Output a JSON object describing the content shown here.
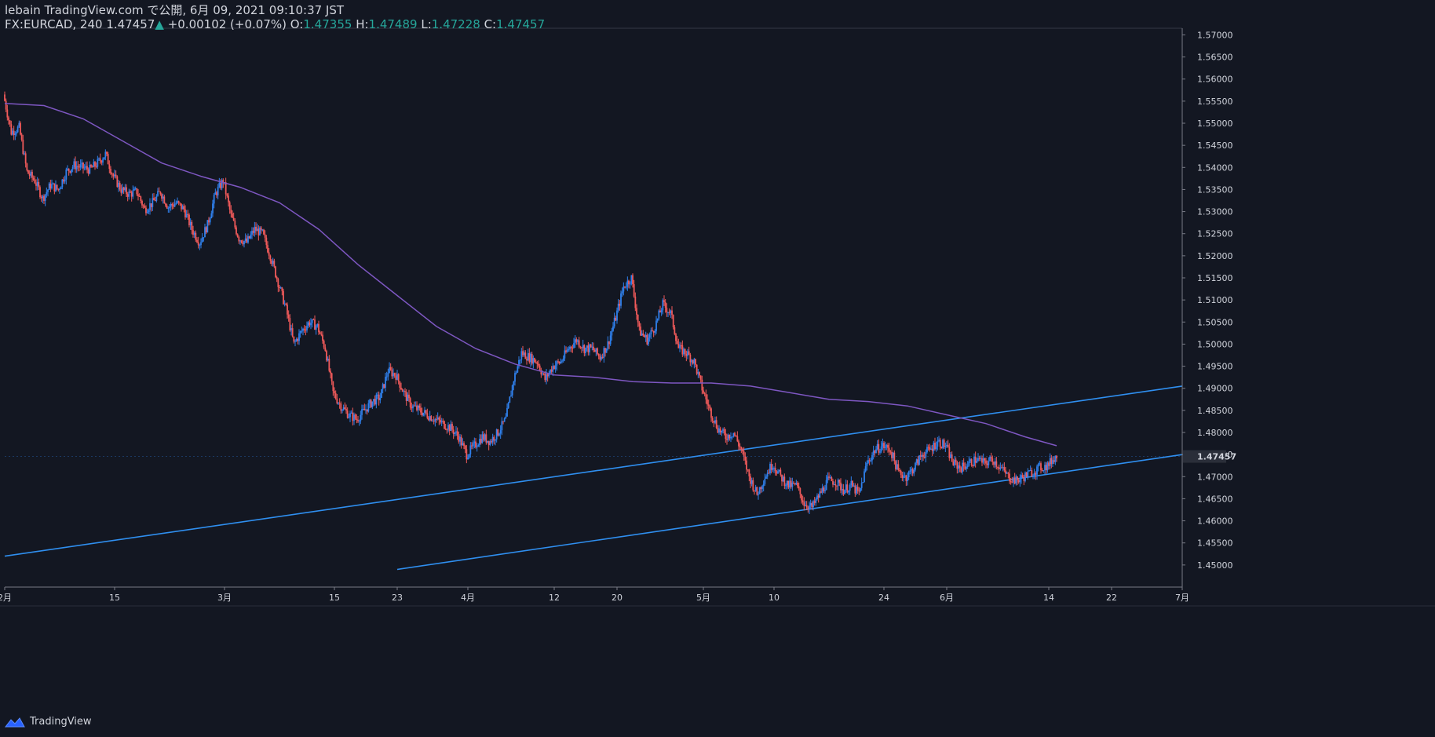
{
  "header": {
    "line1": "lebain TradingView.com で公開, 6月 09, 2021 09:10:37 JST",
    "symbol": "FX:EURCAD, 240",
    "last": "1.47457",
    "change": "+0.00102 (+0.07%)",
    "o_label": "O:",
    "o_value": "1.47355",
    "h_label": "H:",
    "h_value": "1.47489",
    "l_label": "L:",
    "l_value": "1.47228",
    "c_label": "C:",
    "c_value": "1.47457"
  },
  "footer": {
    "brand": "TradingView"
  },
  "colors": {
    "background": "#131722",
    "up": "#2f80ed",
    "down": "#f05a5a",
    "ma": "#7e57c2",
    "trendline": "#2f8ff0",
    "axis": "#787b86"
  },
  "chart_data": {
    "type": "candlestick",
    "symbol": "FX:EURCAD",
    "interval": "240",
    "ylim": [
      1.445,
      1.5715
    ],
    "y_ticks": [
      "1.57000",
      "1.56500",
      "1.56000",
      "1.55500",
      "1.55000",
      "1.54500",
      "1.54000",
      "1.53500",
      "1.53000",
      "1.52500",
      "1.52000",
      "1.51500",
      "1.51000",
      "1.50500",
      "1.50000",
      "1.49500",
      "1.49000",
      "1.48500",
      "1.48000",
      "1.47500",
      "1.47000",
      "1.46500",
      "1.46000",
      "1.45500",
      "1.45000"
    ],
    "y_tick_values": [
      1.57,
      1.565,
      1.56,
      1.555,
      1.55,
      1.545,
      1.54,
      1.535,
      1.53,
      1.525,
      1.52,
      1.515,
      1.51,
      1.505,
      1.5,
      1.495,
      1.49,
      1.485,
      1.48,
      1.475,
      1.47,
      1.465,
      1.46,
      1.455,
      1.45
    ],
    "x_ticks": [
      {
        "label": "2月",
        "day": 0
      },
      {
        "label": "15",
        "day": 14
      },
      {
        "label": "3月",
        "day": 28
      },
      {
        "label": "15",
        "day": 42
      },
      {
        "label": "23",
        "day": 50
      },
      {
        "label": "4月",
        "day": 59
      },
      {
        "label": "12",
        "day": 70
      },
      {
        "label": "20",
        "day": 78
      },
      {
        "label": "5月",
        "day": 89
      },
      {
        "label": "10",
        "day": 98
      },
      {
        "label": "24",
        "day": 112
      },
      {
        "label": "6月",
        "day": 120
      },
      {
        "label": "14",
        "day": 133
      },
      {
        "label": "22",
        "day": 141
      },
      {
        "label": "7月",
        "day": 150
      }
    ],
    "last_price": "1.47457",
    "price_path": [
      [
        0,
        1.5565
      ],
      [
        1,
        1.548
      ],
      [
        2,
        1.549
      ],
      [
        3,
        1.539
      ],
      [
        4,
        1.537
      ],
      [
        5,
        1.533
      ],
      [
        6,
        1.536
      ],
      [
        7,
        1.535
      ],
      [
        8,
        1.539
      ],
      [
        9,
        1.5405
      ],
      [
        10,
        1.54
      ],
      [
        11,
        1.5395
      ],
      [
        12,
        1.541
      ],
      [
        13,
        1.543
      ],
      [
        14,
        1.538
      ],
      [
        15,
        1.535
      ],
      [
        16,
        1.534
      ],
      [
        17,
        1.5345
      ],
      [
        18,
        1.5305
      ],
      [
        19,
        1.532
      ],
      [
        20,
        1.5345
      ],
      [
        21,
        1.531
      ],
      [
        22,
        1.532
      ],
      [
        23,
        1.5305
      ],
      [
        24,
        1.526
      ],
      [
        25,
        1.523
      ],
      [
        26,
        1.527
      ],
      [
        27,
        1.534
      ],
      [
        28,
        1.537
      ],
      [
        29,
        1.529
      ],
      [
        30,
        1.524
      ],
      [
        31,
        1.523
      ],
      [
        32,
        1.526
      ],
      [
        33,
        1.525
      ],
      [
        34,
        1.52
      ],
      [
        35,
        1.514
      ],
      [
        36,
        1.508
      ],
      [
        37,
        1.5
      ],
      [
        38,
        1.503
      ],
      [
        39,
        1.505
      ],
      [
        40,
        1.504
      ],
      [
        41,
        1.499
      ],
      [
        42,
        1.489
      ],
      [
        43,
        1.486
      ],
      [
        44,
        1.484
      ],
      [
        45,
        1.483
      ],
      [
        46,
        1.485
      ],
      [
        47,
        1.487
      ],
      [
        48,
        1.488
      ],
      [
        49,
        1.494
      ],
      [
        50,
        1.493
      ],
      [
        51,
        1.489
      ],
      [
        52,
        1.486
      ],
      [
        53,
        1.485
      ],
      [
        54,
        1.484
      ],
      [
        55,
        1.483
      ],
      [
        56,
        1.482
      ],
      [
        57,
        1.481
      ],
      [
        58,
        1.479
      ],
      [
        59,
        1.475
      ],
      [
        60,
        1.477
      ],
      [
        61,
        1.479
      ],
      [
        62,
        1.478
      ],
      [
        63,
        1.48
      ],
      [
        64,
        1.483
      ],
      [
        65,
        1.492
      ],
      [
        66,
        1.498
      ],
      [
        67,
        1.497
      ],
      [
        68,
        1.496
      ],
      [
        69,
        1.492
      ],
      [
        70,
        1.495
      ],
      [
        71,
        1.496
      ],
      [
        72,
        1.499
      ],
      [
        73,
        1.501
      ],
      [
        74,
        1.499
      ],
      [
        75,
        1.499
      ],
      [
        76,
        1.497
      ],
      [
        77,
        1.5
      ],
      [
        78,
        1.506
      ],
      [
        79,
        1.513
      ],
      [
        80,
        1.515
      ],
      [
        81,
        1.503
      ],
      [
        82,
        1.501
      ],
      [
        83,
        1.504
      ],
      [
        84,
        1.509
      ],
      [
        85,
        1.507
      ],
      [
        86,
        1.499
      ],
      [
        87,
        1.498
      ],
      [
        88,
        1.496
      ],
      [
        89,
        1.49
      ],
      [
        90,
        1.485
      ],
      [
        91,
        1.481
      ],
      [
        92,
        1.479
      ],
      [
        93,
        1.48
      ],
      [
        94,
        1.476
      ],
      [
        95,
        1.47
      ],
      [
        96,
        1.466
      ],
      [
        97,
        1.47
      ],
      [
        98,
        1.473
      ],
      [
        99,
        1.47
      ],
      [
        100,
        1.468
      ],
      [
        101,
        1.468
      ],
      [
        102,
        1.464
      ],
      [
        103,
        1.463
      ],
      [
        104,
        1.466
      ],
      [
        105,
        1.469
      ],
      [
        106,
        1.469
      ],
      [
        107,
        1.467
      ],
      [
        108,
        1.468
      ],
      [
        109,
        1.466
      ],
      [
        110,
        1.473
      ],
      [
        111,
        1.476
      ],
      [
        112,
        1.477
      ],
      [
        113,
        1.476
      ],
      [
        114,
        1.471
      ],
      [
        115,
        1.47
      ],
      [
        116,
        1.472
      ],
      [
        117,
        1.475
      ],
      [
        118,
        1.476
      ],
      [
        119,
        1.478
      ],
      [
        120,
        1.477
      ],
      [
        121,
        1.473
      ],
      [
        122,
        1.472
      ],
      [
        123,
        1.473
      ],
      [
        124,
        1.474
      ],
      [
        125,
        1.473
      ],
      [
        126,
        1.474
      ],
      [
        127,
        1.472
      ],
      [
        128,
        1.47
      ],
      [
        129,
        1.469
      ],
      [
        130,
        1.47
      ],
      [
        131,
        1.471
      ],
      [
        132,
        1.472
      ],
      [
        133,
        1.4725
      ],
      [
        134,
        1.4746
      ]
    ],
    "moving_average": [
      [
        0,
        1.5545
      ],
      [
        5,
        1.554
      ],
      [
        10,
        1.551
      ],
      [
        15,
        1.546
      ],
      [
        20,
        1.541
      ],
      [
        25,
        1.538
      ],
      [
        30,
        1.5355
      ],
      [
        35,
        1.532
      ],
      [
        40,
        1.526
      ],
      [
        45,
        1.518
      ],
      [
        50,
        1.511
      ],
      [
        55,
        1.504
      ],
      [
        60,
        1.499
      ],
      [
        65,
        1.4955
      ],
      [
        70,
        1.493
      ],
      [
        75,
        1.4925
      ],
      [
        80,
        1.4915
      ],
      [
        85,
        1.4912
      ],
      [
        90,
        1.4912
      ],
      [
        95,
        1.4905
      ],
      [
        100,
        1.489
      ],
      [
        105,
        1.4875
      ],
      [
        110,
        1.487
      ],
      [
        115,
        1.486
      ],
      [
        120,
        1.484
      ],
      [
        125,
        1.482
      ],
      [
        130,
        1.479
      ],
      [
        134,
        1.477
      ]
    ],
    "trendlines": [
      {
        "start": [
          0,
          1.452
        ],
        "end": [
          150,
          1.4905
        ]
      },
      {
        "start": [
          50,
          1.449
        ],
        "end": [
          150,
          1.475
        ]
      }
    ]
  }
}
